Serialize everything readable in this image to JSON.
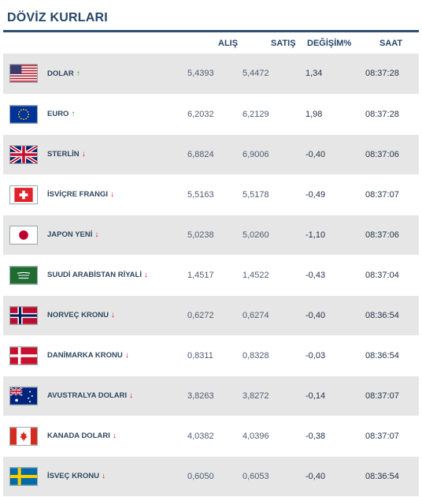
{
  "title": "DÖVİZ KURLARI",
  "headers": {
    "alis": "ALIŞ",
    "satis": "SATIŞ",
    "degisim": "DEĞİŞİM%",
    "saat": "SAAT"
  },
  "rows": [
    {
      "flag": "us-flag-icon",
      "name": "DOLAR",
      "trend": "up",
      "alis": "5,4393",
      "satis": "5,4472",
      "degisim": "1,34",
      "saat": "08:37:28"
    },
    {
      "flag": "eu-flag-icon",
      "name": "EURO",
      "trend": "up",
      "alis": "6,2032",
      "satis": "6,2129",
      "degisim": "1,98",
      "saat": "08:37:28"
    },
    {
      "flag": "gb-flag-icon",
      "name": "STERLİN",
      "trend": "down",
      "alis": "6,8824",
      "satis": "6,9006",
      "degisim": "-0,40",
      "saat": "08:37:06"
    },
    {
      "flag": "ch-flag-icon",
      "name": "İSVİÇRE FRANGI",
      "trend": "down",
      "alis": "5,5163",
      "satis": "5,5178",
      "degisim": "-0,49",
      "saat": "08:37:07"
    },
    {
      "flag": "jp-flag-icon",
      "name": "JAPON YENİ",
      "trend": "down",
      "alis": "5,0238",
      "satis": "5,0260",
      "degisim": "-1,10",
      "saat": "08:37:06"
    },
    {
      "flag": "sa-flag-icon",
      "name": "SUUDİ ARABİSTAN RİYALİ",
      "trend": "down",
      "alis": "1,4517",
      "satis": "1,4522",
      "degisim": "-0,43",
      "saat": "08:37:04"
    },
    {
      "flag": "no-flag-icon",
      "name": "NORVEÇ KRONU",
      "trend": "down",
      "alis": "0,6272",
      "satis": "0,6274",
      "degisim": "-0,40",
      "saat": "08:36:54"
    },
    {
      "flag": "dk-flag-icon",
      "name": "DANİMARKA KRONU",
      "trend": "down",
      "alis": "0,8311",
      "satis": "0,8328",
      "degisim": "-0,03",
      "saat": "08:36:54"
    },
    {
      "flag": "au-flag-icon",
      "name": "AVUSTRALYA DOLARI",
      "trend": "down",
      "alis": "3,8263",
      "satis": "3,8272",
      "degisim": "-0,14",
      "saat": "08:37:07"
    },
    {
      "flag": "ca-flag-icon",
      "name": "KANADA DOLARI",
      "trend": "down",
      "alis": "4,0382",
      "satis": "4,0396",
      "degisim": "-0,38",
      "saat": "08:37:07"
    },
    {
      "flag": "se-flag-icon",
      "name": "İSVEÇ KRONU",
      "trend": "down",
      "alis": "0,6050",
      "satis": "0,6053",
      "degisim": "-0,40",
      "saat": "08:36:54"
    }
  ],
  "colors": {
    "accent": "#2f4f74",
    "up": "#2a9a3a",
    "down": "#d21c1c",
    "stripe": "#e6e6e6"
  }
}
